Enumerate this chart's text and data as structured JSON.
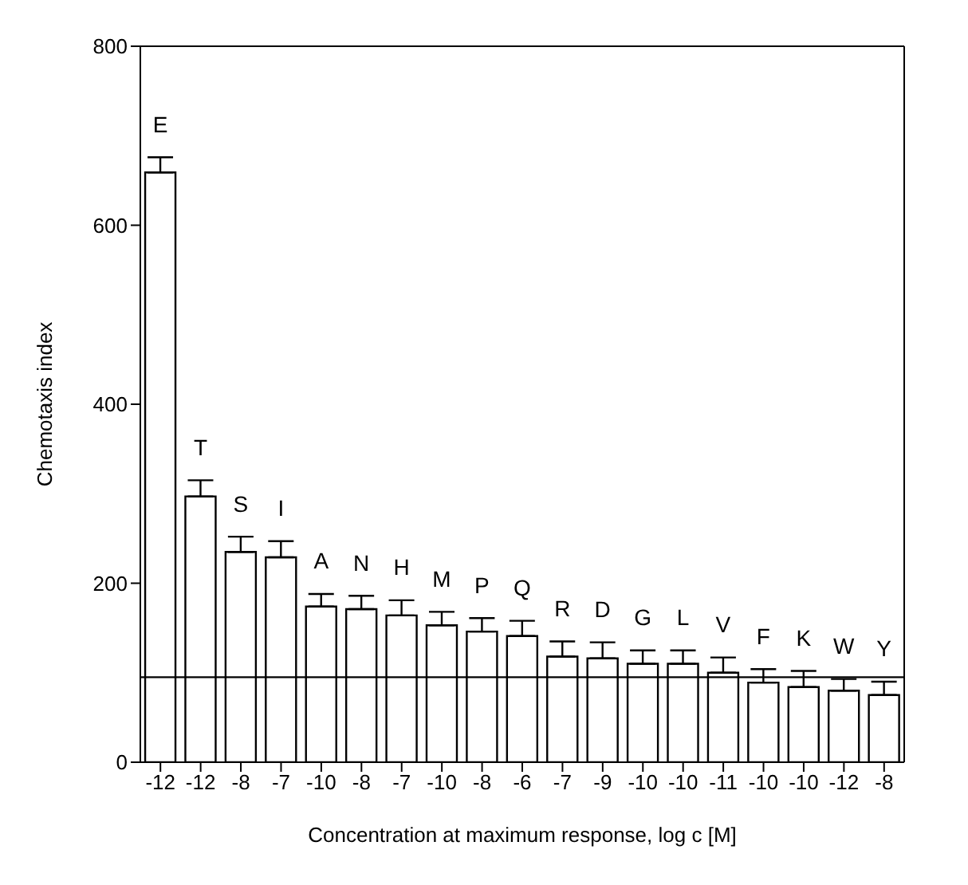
{
  "chart_data": {
    "type": "bar",
    "xlabel": "Concentration at maximum response, log c [M]",
    "ylabel": "Chemotaxis index",
    "categories": [
      "-12",
      "-12",
      "-8",
      "-7",
      "-10",
      "-8",
      "-7",
      "-10",
      "-8",
      "-6",
      "-7",
      "-9",
      "-10",
      "-10",
      "-11",
      "-10",
      "-10",
      "-12",
      "-8"
    ],
    "values": [
      659,
      297,
      235,
      229,
      174,
      171,
      164,
      153,
      146,
      141,
      118,
      116,
      110,
      110,
      100,
      89,
      84,
      80,
      75
    ],
    "errors": [
      [
        659,
        676
      ],
      [
        297,
        315
      ],
      [
        235,
        252
      ],
      [
        229,
        247
      ],
      [
        174,
        188
      ],
      [
        171,
        186
      ],
      [
        164,
        181
      ],
      [
        153,
        168
      ],
      [
        146,
        161
      ],
      [
        141,
        158
      ],
      [
        118,
        135
      ],
      [
        116,
        134
      ],
      [
        110,
        125
      ],
      [
        110,
        125
      ],
      [
        100,
        117
      ],
      [
        89,
        104
      ],
      [
        84,
        102
      ],
      [
        80,
        93
      ],
      [
        75,
        90
      ]
    ],
    "value_labels": [
      "E",
      "T",
      "S",
      "I",
      "A",
      "N",
      "H",
      "M",
      "P",
      "Q",
      "R",
      "D",
      "G",
      "L",
      "V",
      "F",
      "K",
      "W",
      "Y"
    ],
    "color": "#ffffff",
    "ylim": [
      0,
      800
    ],
    "yticks": [
      0,
      200,
      400,
      600,
      800
    ],
    "ref_lines": [
      {
        "axis": "y",
        "value": 95,
        "color": "#000000"
      }
    ],
    "grid": false
  }
}
